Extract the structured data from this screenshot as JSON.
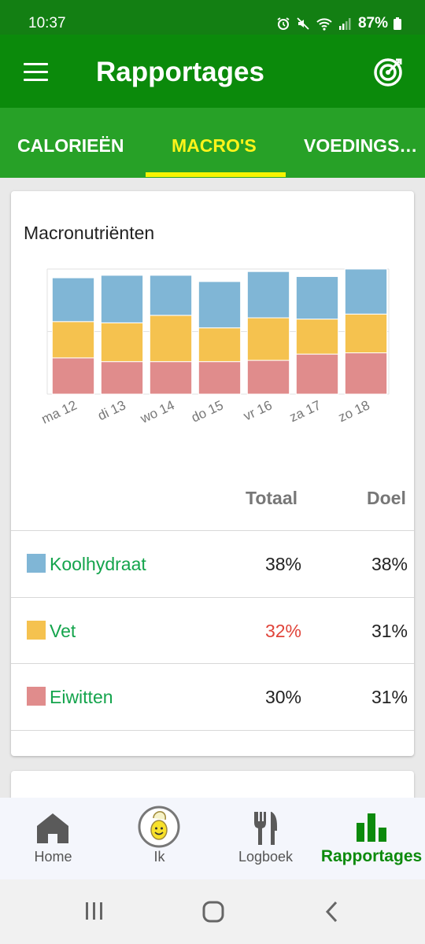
{
  "status": {
    "time": "10:37",
    "battery": "87%"
  },
  "app_bar": {
    "title": "Rapportages",
    "menu_icon": "hamburger-menu-icon",
    "goal_icon": "target-icon"
  },
  "tabs": [
    {
      "label": "CALORIEËN",
      "active": false
    },
    {
      "label": "MACRO'S",
      "active": true
    },
    {
      "label": "VOEDINGS…",
      "active": false
    }
  ],
  "card": {
    "title": "Macronutriënten"
  },
  "chart_data": {
    "type": "bar",
    "stacked": true,
    "categories": [
      "ma 12",
      "di 13",
      "wo 14",
      "do 15",
      "vr 16",
      "za 17",
      "zo 18"
    ],
    "series": [
      {
        "name": "Eiwitten",
        "color": "#e08c8c",
        "values": [
          29,
          26,
          26,
          26,
          27,
          32,
          33
        ]
      },
      {
        "name": "Vet",
        "color": "#f5c24f",
        "values": [
          29,
          31,
          37,
          27,
          34,
          28,
          31
        ]
      },
      {
        "name": "Koolhydraat",
        "color": "#80b6d6",
        "values": [
          35,
          38,
          32,
          37,
          37,
          34,
          36
        ]
      }
    ],
    "title": "Macronutriënten",
    "xlabel": "",
    "ylabel": "",
    "ylim": [
      0,
      100
    ],
    "grid": true
  },
  "table": {
    "col_total": "Totaal",
    "col_goal": "Doel",
    "rows": [
      {
        "label": "Koolhydraat",
        "color": "#80b6d6",
        "total": "38%",
        "goal": "38%",
        "over": false
      },
      {
        "label": "Vet",
        "color": "#f5c24f",
        "total": "32%",
        "goal": "31%",
        "over": true
      },
      {
        "label": "Eiwitten",
        "color": "#e08c8c",
        "total": "30%",
        "goal": "31%",
        "over": false
      }
    ]
  },
  "bottom_nav": [
    {
      "label": "Home",
      "icon": "home-icon",
      "active": false
    },
    {
      "label": "Ik",
      "icon": "banana-avatar-icon",
      "active": false
    },
    {
      "label": "Logboek",
      "icon": "fork-knife-icon",
      "active": false
    },
    {
      "label": "Rapportages",
      "icon": "bar-chart-icon",
      "active": true
    }
  ],
  "colors": {
    "header": "#0b8a0b",
    "tabs": "#27a127",
    "tab_active": "#fff41a",
    "accent_green": "#14a44c",
    "warning_red": "#e0443a"
  }
}
